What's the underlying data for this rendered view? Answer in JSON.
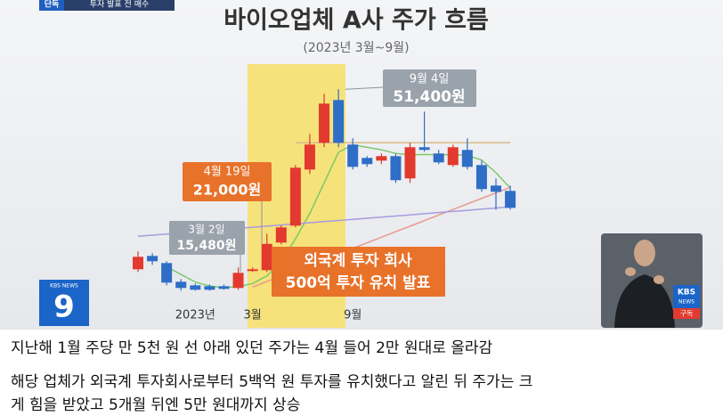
{
  "broadcast": {
    "badge": "단독",
    "badge_text": "투자 발표 전 매수",
    "logo_top": "KBS NEWS",
    "logo_number": "9",
    "sign_logo": "KBS",
    "sign_logo_sub": "NEWS",
    "sign_subscribe": "구독"
  },
  "chart_data": {
    "type": "candlestick",
    "title": "바이오업체 A사 주가 흐름",
    "subtitle": "(2023년 3월~9월)",
    "categories": [
      null,
      null,
      null,
      null,
      "2023년",
      null,
      null,
      null,
      "3월",
      null,
      null,
      null,
      null,
      null,
      null,
      "9월",
      null,
      null,
      null,
      null,
      null,
      null,
      null,
      null,
      null,
      null,
      null
    ],
    "open": [
      16010,
      18630,
      17230,
      13550,
      12850,
      12680,
      12680,
      12330,
      15660,
      15830,
      21260,
      24590,
      35630,
      40880,
      49290,
      40530,
      37910,
      37380,
      38260,
      33880,
      40010,
      38780,
      36500,
      39480,
      36500,
      32470,
      31420
    ],
    "close": [
      18460,
      17580,
      13380,
      12330,
      11980,
      11980,
      12150,
      15310,
      16010,
      21000,
      24240,
      35980,
      40530,
      48590,
      40880,
      36150,
      36680,
      38260,
      33530,
      40010,
      39480,
      37030,
      40010,
      36150,
      31770,
      31250,
      28090
    ],
    "high": [
      19510,
      19160,
      17580,
      14080,
      13200,
      13030,
      13030,
      16360,
      16360,
      23010,
      24590,
      36500,
      42640,
      50520,
      51400,
      41760,
      38260,
      38780,
      38780,
      40880,
      47020,
      39480,
      40530,
      41760,
      37380,
      33880,
      32470
    ],
    "low": [
      15480,
      16880,
      12850,
      11800,
      11800,
      11800,
      11980,
      11980,
      15480,
      15480,
      20910,
      24240,
      34750,
      40010,
      40010,
      35630,
      36150,
      36680,
      33000,
      33000,
      39130,
      36680,
      36150,
      35630,
      31250,
      27740,
      27740
    ],
    "up_color": "#e23a2e",
    "down_color": "#2f6ec6",
    "lines": [
      {
        "color": "#7bc86c",
        "values": [
          null,
          null,
          16500,
          15000,
          13500,
          12700,
          12400,
          12600,
          13200,
          14700,
          17500,
          22000,
          27000,
          33000,
          39000,
          40500,
          40000,
          39500,
          38800,
          38500,
          38600,
          38500,
          38600,
          38400,
          37500,
          35000,
          32000
        ]
      },
      {
        "color": "#e89a8c",
        "values": [
          null,
          null,
          null,
          null,
          null,
          null,
          null,
          null,
          12500,
          13590,
          14680,
          15770,
          16860,
          17950,
          19040,
          20130,
          21220,
          22310,
          23400,
          24490,
          25580,
          26670,
          27760,
          28850,
          29940,
          31030,
          32120
        ]
      },
      {
        "color": "#a79be0",
        "values": [
          22490,
          22710,
          22930,
          23160,
          23380,
          23600,
          23820,
          24050,
          24270,
          24490,
          24710,
          24940,
          25160,
          25380,
          25600,
          25830,
          26050,
          26270,
          26490,
          26710,
          26940,
          27160,
          27380,
          27600,
          27830,
          28050,
          28270
        ]
      },
      {
        "color": "#d9b98a",
        "values": [
          null,
          null,
          null,
          null,
          null,
          null,
          null,
          null,
          null,
          null,
          null,
          40880,
          40880,
          40880,
          40880,
          40880,
          40880,
          40880,
          40880,
          40880,
          40880,
          40880,
          40880,
          40880,
          40880,
          40880,
          40880
        ]
      }
    ],
    "ylim": [
      8000,
      56000
    ],
    "annotations": [
      {
        "date": "3월 2일",
        "label": "15,480원",
        "value": 15480
      },
      {
        "date": "4월 19일",
        "label": "21,000원",
        "value": 21000
      },
      {
        "date": "9월 4일",
        "label": "51,400원",
        "value": 51400
      }
    ],
    "note": [
      "외국계 투자 회사",
      "500억 투자 유치 발표"
    ]
  },
  "captions": [
    "지난해 1월 주당 만 5천 원 선 아래 있던 주가는 4월 들어 2만 원대로 올라감",
    "해당 업체가 외국계 투자회사로부터 5백억 원 투자를 유치했다고 알린 뒤 주가는 크",
    "게 힘을 받았고 5개월 뒤엔 5만 원대까지 상승"
  ]
}
